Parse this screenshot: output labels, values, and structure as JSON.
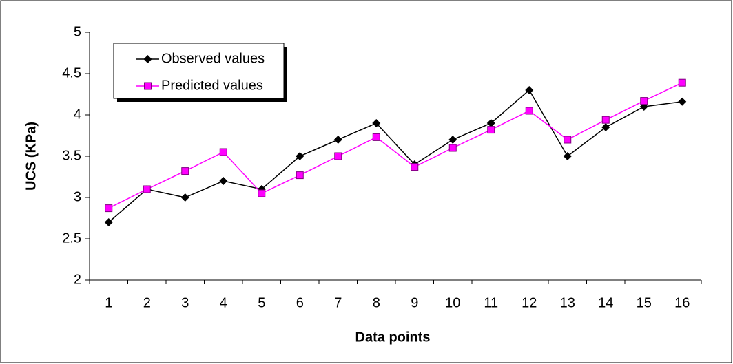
{
  "chart_data": {
    "type": "line",
    "x_label": "Data points",
    "y_label": "UCS (KPa)",
    "categories": [
      "1",
      "2",
      "3",
      "4",
      "5",
      "6",
      "7",
      "8",
      "9",
      "10",
      "11",
      "12",
      "13",
      "14",
      "15",
      "16"
    ],
    "series": [
      {
        "name": "Observed values",
        "color": "#000000",
        "marker": "diamond",
        "values": [
          2.7,
          3.1,
          3.0,
          3.2,
          3.1,
          3.5,
          3.7,
          3.9,
          3.4,
          3.7,
          3.9,
          4.3,
          3.5,
          3.85,
          4.1,
          4.16
        ]
      },
      {
        "name": "Predicted values",
        "color": "#ff00ff",
        "marker": "square",
        "values": [
          2.87,
          3.1,
          3.32,
          3.55,
          3.05,
          3.27,
          3.5,
          3.73,
          3.37,
          3.6,
          3.82,
          4.05,
          3.7,
          3.94,
          4.17,
          4.39
        ]
      }
    ],
    "ylim": [
      2,
      5
    ],
    "yticks": [
      2,
      2.5,
      3,
      3.5,
      4,
      4.5,
      5
    ],
    "legend": "upper left"
  }
}
